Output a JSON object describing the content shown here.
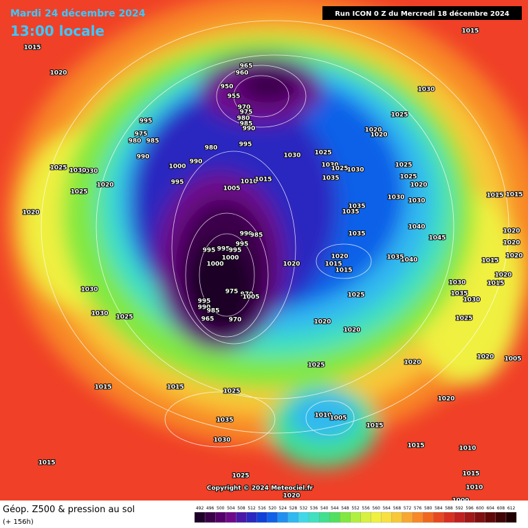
{
  "header": {
    "date": "Mardi 24 décembre 2024",
    "time": "13:00 locale",
    "run": "Run ICON 0 Z du Mercredi 18 décembre 2024"
  },
  "footer": {
    "title": "Géop. Z500 & pression au sol",
    "lead": "(+ 156h)",
    "copyright": "Copyright © 2024 Meteociel.fr"
  },
  "colorbar": {
    "ticks": [
      492,
      496,
      500,
      504,
      508,
      512,
      516,
      520,
      524,
      528,
      532,
      536,
      540,
      544,
      548,
      552,
      556,
      560,
      564,
      568,
      572,
      576,
      580,
      584,
      588,
      592,
      596,
      600,
      604,
      608,
      612
    ],
    "colors": [
      "#1e0028",
      "#3a0048",
      "#55006a",
      "#6e0a8a",
      "#4a18a8",
      "#2a28c0",
      "#1040d8",
      "#1060e8",
      "#2090f0",
      "#30b8f0",
      "#40d8e8",
      "#40e0c0",
      "#40e090",
      "#50e060",
      "#80e840",
      "#b0f040",
      "#d8f040",
      "#f0f040",
      "#f8e040",
      "#f8c838",
      "#f8a830",
      "#f88828",
      "#f06820",
      "#e84820",
      "#d83020",
      "#c02020",
      "#a01818",
      "#801010",
      "#600808",
      "#400404",
      "#200000"
    ]
  },
  "isobar_labels": [
    1015,
    1020,
    965,
    960,
    950,
    955,
    970,
    975,
    980,
    985,
    990,
    995,
    975,
    980,
    985,
    990,
    995,
    980,
    990,
    1000,
    995,
    1005,
    1010,
    1015,
    1030,
    1025,
    1030,
    1035,
    1030,
    1025,
    1030,
    1025,
    1020,
    1020,
    1025,
    1025,
    1020,
    1030,
    1030,
    1035,
    1035,
    1035,
    1040,
    1045,
    1040,
    1035,
    990,
    985,
    995,
    995,
    995,
    995,
    1000,
    1000,
    1020,
    1020,
    1015,
    1015,
    1030,
    1030,
    1025,
    975,
    970,
    1005,
    995,
    990,
    985,
    965,
    970,
    1020,
    1020,
    1025,
    1025,
    1020,
    1015,
    1015,
    1025,
    1035,
    1030,
    1010,
    1005,
    1015,
    1015,
    1025,
    1020,
    1015,
    1020,
    1020,
    1015,
    1030,
    1025,
    1020,
    1020,
    1025,
    1030,
    1015,
    1015,
    1020,
    1020,
    1015,
    1015,
    1035,
    1030,
    1025,
    1005,
    1010,
    1015,
    1010,
    1000,
    1020,
    1020,
    1030
  ]
}
